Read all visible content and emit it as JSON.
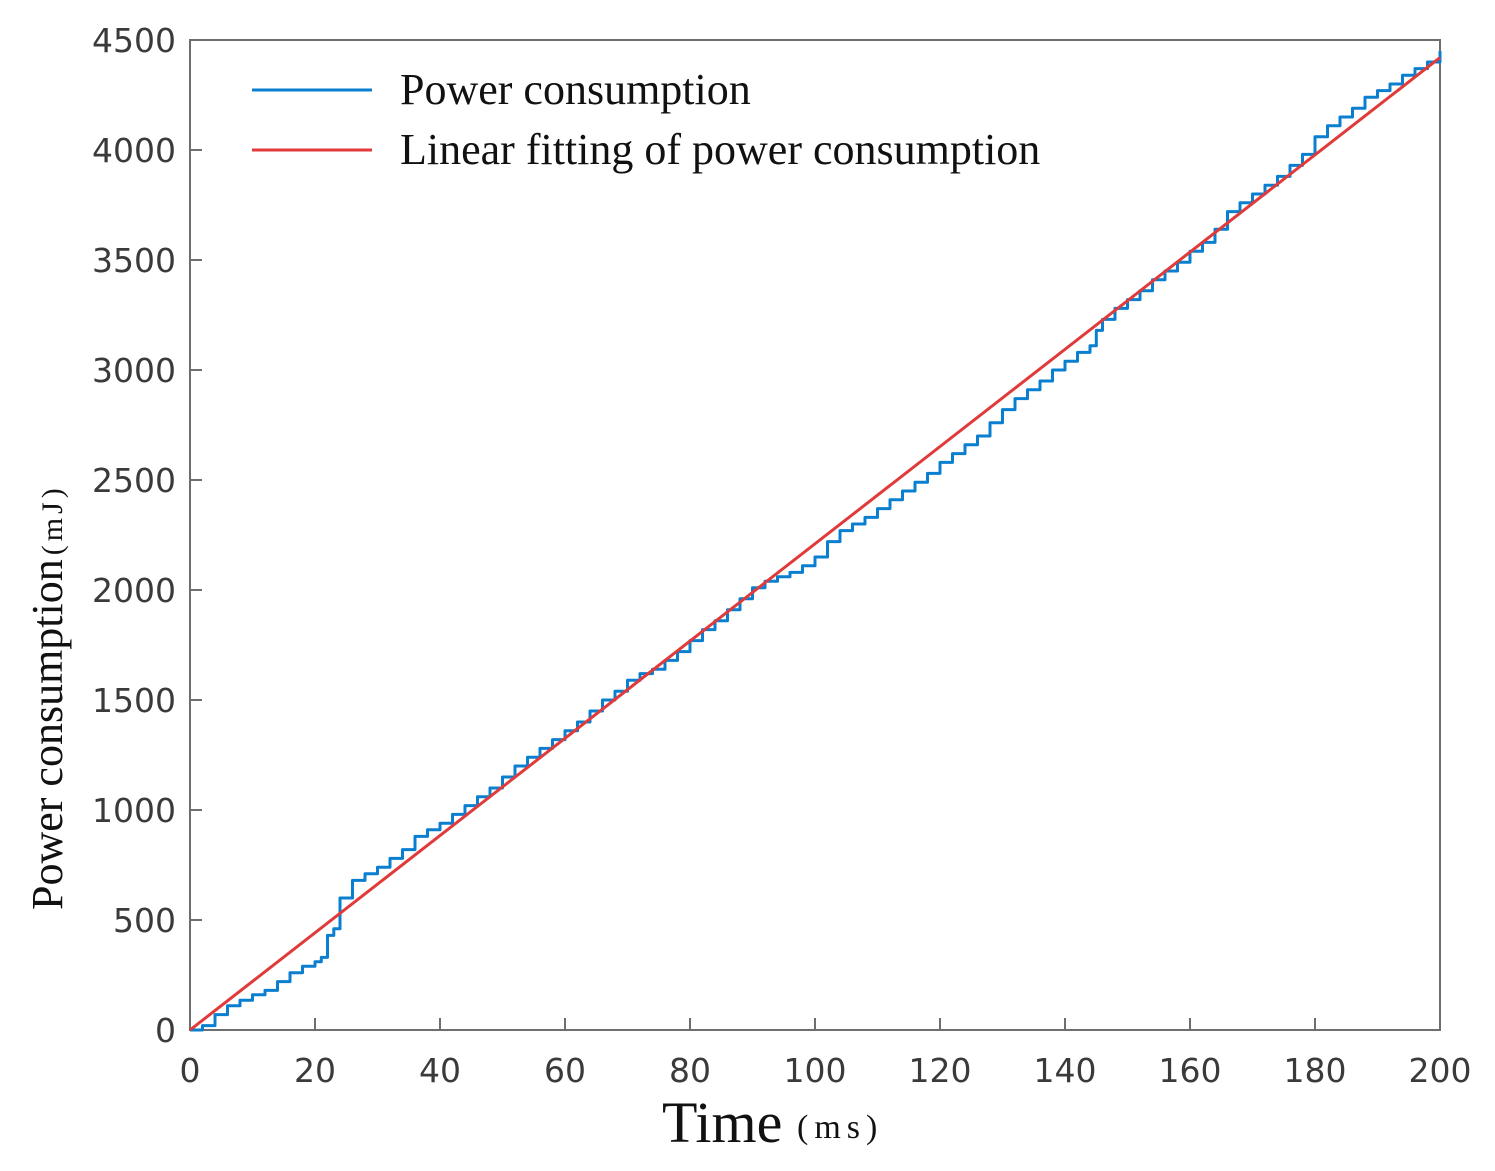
{
  "chart_data": {
    "type": "line",
    "title": "",
    "xlabel": "Time",
    "xlabel_unit": "(ms)",
    "ylabel": "Power consumption",
    "ylabel_unit": "(mJ)",
    "xlim": [
      0,
      200
    ],
    "ylim": [
      0,
      4500
    ],
    "x_ticks": [
      "0",
      "20",
      "40",
      "60",
      "80",
      "100",
      "120",
      "140",
      "160",
      "180",
      "200"
    ],
    "y_ticks": [
      "0",
      "500",
      "1000",
      "1500",
      "2000",
      "2500",
      "3000",
      "3500",
      "4000",
      "4500"
    ],
    "grid": false,
    "legend_position": "top-left",
    "series": [
      {
        "name": "Power consumption",
        "color": "#0a7fd0",
        "x": [
          0,
          2,
          4,
          6,
          8,
          10,
          12,
          14,
          16,
          18,
          20,
          21,
          22,
          23,
          24,
          26,
          28,
          30,
          32,
          34,
          36,
          38,
          40,
          42,
          44,
          46,
          48,
          50,
          52,
          54,
          56,
          58,
          60,
          62,
          64,
          66,
          68,
          70,
          72,
          74,
          76,
          78,
          80,
          82,
          84,
          86,
          88,
          90,
          92,
          94,
          96,
          98,
          100,
          102,
          104,
          106,
          108,
          110,
          112,
          114,
          116,
          118,
          120,
          122,
          124,
          126,
          128,
          130,
          132,
          134,
          136,
          138,
          140,
          142,
          144,
          145,
          146,
          148,
          150,
          152,
          154,
          156,
          158,
          160,
          162,
          164,
          166,
          168,
          170,
          172,
          174,
          176,
          178,
          180,
          182,
          184,
          186,
          188,
          190,
          192,
          194,
          196,
          198,
          200
        ],
        "y": [
          0,
          20,
          70,
          110,
          135,
          160,
          180,
          220,
          260,
          290,
          310,
          330,
          430,
          460,
          600,
          680,
          710,
          740,
          780,
          820,
          880,
          910,
          940,
          980,
          1020,
          1060,
          1100,
          1150,
          1200,
          1240,
          1280,
          1320,
          1360,
          1400,
          1450,
          1500,
          1540,
          1590,
          1620,
          1640,
          1680,
          1720,
          1770,
          1820,
          1860,
          1910,
          1960,
          2010,
          2040,
          2060,
          2080,
          2110,
          2150,
          2220,
          2270,
          2300,
          2330,
          2370,
          2410,
          2450,
          2490,
          2530,
          2580,
          2620,
          2660,
          2700,
          2760,
          2820,
          2870,
          2910,
          2950,
          3000,
          3040,
          3080,
          3110,
          3180,
          3230,
          3280,
          3320,
          3360,
          3410,
          3450,
          3490,
          3540,
          3580,
          3640,
          3720,
          3760,
          3800,
          3840,
          3880,
          3930,
          3980,
          4060,
          4110,
          4150,
          4190,
          4240,
          4270,
          4300,
          4340,
          4370,
          4400,
          4450
        ]
      },
      {
        "name": "Linear fitting of power consumption",
        "color": "#e03a3a",
        "x": [
          0,
          200
        ],
        "y": [
          0,
          4420
        ]
      }
    ]
  }
}
